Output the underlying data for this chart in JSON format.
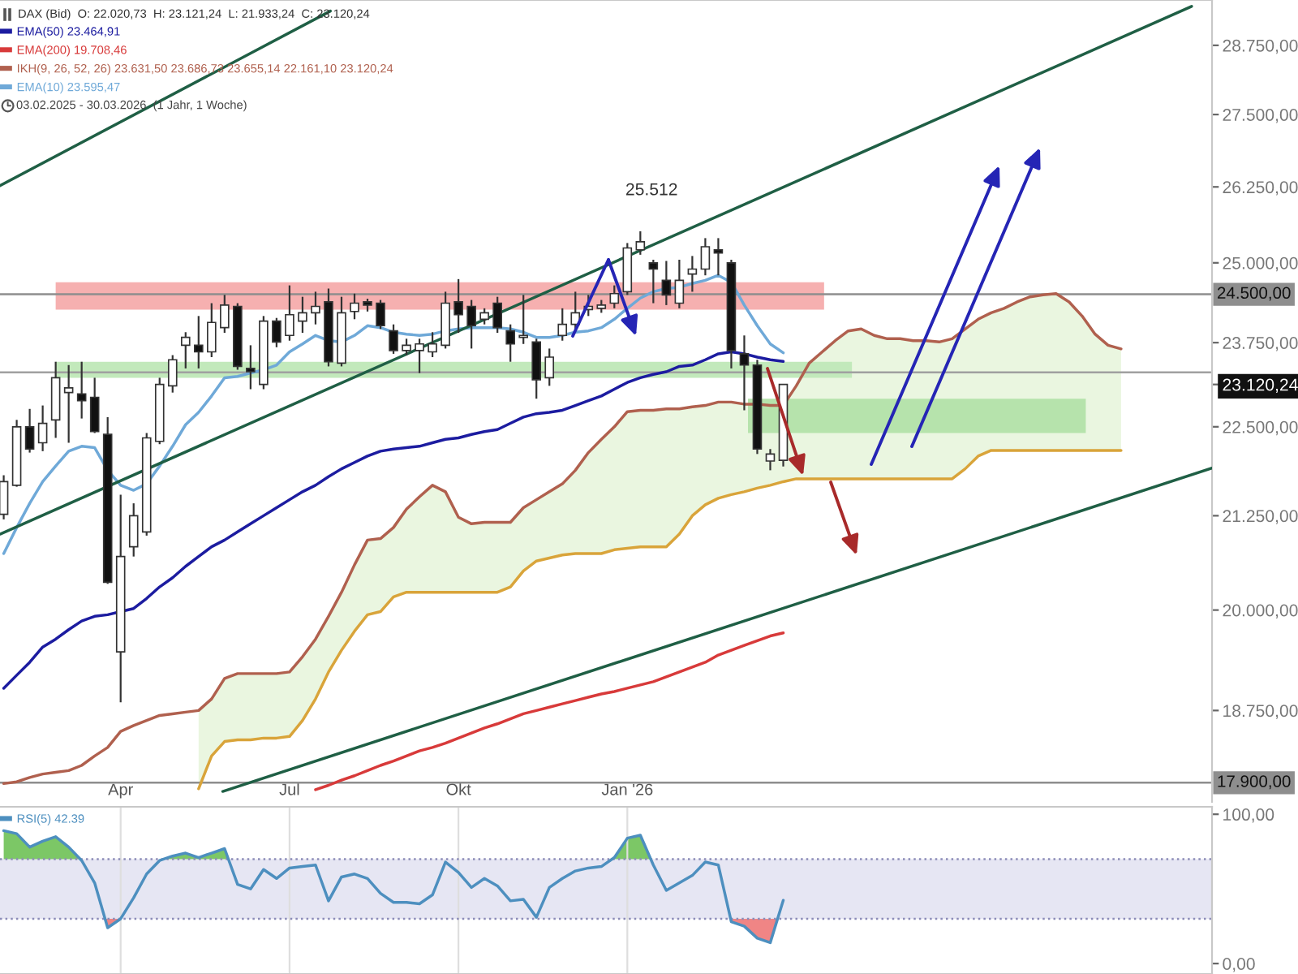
{
  "chart_data": [
    {
      "type": "candlestick",
      "title": "DAX (Bid)  O: 22.020,73  H: 23.121,24  L: 21.933,24  C: 23.120,24",
      "x": [
        "2025-02-03",
        "2025-02-10",
        "2025-02-17",
        "2025-02-24",
        "2025-03-03",
        "2025-03-10",
        "2025-03-17",
        "2025-03-24",
        "2025-03-31",
        "2025-04-07",
        "2025-04-14",
        "2025-04-21",
        "2025-04-28",
        "2025-05-05",
        "2025-05-12",
        "2025-05-19",
        "2025-05-26",
        "2025-06-02",
        "2025-06-09",
        "2025-06-16",
        "2025-06-23",
        "2025-06-30",
        "2025-07-07",
        "2025-07-14",
        "2025-07-21",
        "2025-07-28",
        "2025-08-04",
        "2025-08-11",
        "2025-08-18",
        "2025-08-25",
        "2025-09-01",
        "2025-09-08",
        "2025-09-15",
        "2025-09-22",
        "2025-09-29",
        "2025-10-06",
        "2025-10-13",
        "2025-10-20",
        "2025-10-27",
        "2025-11-03",
        "2025-11-10",
        "2025-11-17",
        "2025-11-24",
        "2025-12-01",
        "2025-12-08",
        "2025-12-15",
        "2025-12-22",
        "2025-12-29",
        "2026-01-05",
        "2026-01-12",
        "2026-01-19",
        "2026-01-26",
        "2026-02-02",
        "2026-02-09",
        "2026-02-16",
        "2026-02-23",
        "2026-03-02",
        "2026-03-09",
        "2026-03-16",
        "2026-03-23",
        "2026-03-30"
      ],
      "ohlc": [
        [
          21270,
          21810,
          21200,
          21720
        ],
        [
          21670,
          22600,
          21650,
          22500
        ],
        [
          22500,
          22760,
          22130,
          22180
        ],
        [
          22270,
          22810,
          22150,
          22550
        ],
        [
          22600,
          23460,
          22340,
          23220
        ],
        [
          23000,
          23410,
          22270,
          23070
        ],
        [
          22980,
          23460,
          22620,
          22880
        ],
        [
          22930,
          23220,
          22410,
          22430
        ],
        [
          22390,
          22640,
          20340,
          20360
        ],
        [
          19470,
          21540,
          18850,
          20700
        ],
        [
          20830,
          21420,
          20700,
          21250
        ],
        [
          21030,
          22410,
          20980,
          22340
        ],
        [
          22290,
          23220,
          22250,
          23120
        ],
        [
          23100,
          23560,
          23000,
          23490
        ],
        [
          23710,
          23910,
          23360,
          23830
        ],
        [
          23710,
          24160,
          23360,
          23610
        ],
        [
          23610,
          24360,
          23530,
          24060
        ],
        [
          23980,
          24490,
          23900,
          24330
        ],
        [
          24310,
          24360,
          23340,
          23390
        ],
        [
          23360,
          23710,
          23050,
          23310
        ],
        [
          23120,
          24160,
          23050,
          24080
        ],
        [
          24080,
          24130,
          23680,
          23760
        ],
        [
          23860,
          24640,
          23780,
          24180
        ],
        [
          24080,
          24460,
          23900,
          24210
        ],
        [
          24210,
          24540,
          24030,
          24310
        ],
        [
          24380,
          24590,
          23390,
          23460
        ],
        [
          23440,
          24460,
          23390,
          24210
        ],
        [
          24230,
          24510,
          24110,
          24360
        ],
        [
          24380,
          24430,
          24230,
          24330
        ],
        [
          24360,
          24410,
          23960,
          24010
        ],
        [
          23930,
          24030,
          23580,
          23630
        ],
        [
          23630,
          23810,
          23560,
          23710
        ],
        [
          23630,
          23810,
          23290,
          23730
        ],
        [
          23610,
          23910,
          23530,
          23730
        ],
        [
          23710,
          24540,
          23660,
          24360
        ],
        [
          24380,
          24740,
          23900,
          24180
        ],
        [
          24310,
          24410,
          23660,
          24010
        ],
        [
          24110,
          24280,
          24030,
          24210
        ],
        [
          24360,
          24460,
          23900,
          23980
        ],
        [
          23930,
          24030,
          23460,
          23730
        ],
        [
          23830,
          24490,
          23730,
          23860
        ],
        [
          23760,
          23810,
          22910,
          23190
        ],
        [
          23220,
          23660,
          23100,
          23530
        ],
        [
          23860,
          24280,
          23780,
          24030
        ],
        [
          24030,
          24540,
          23960,
          24210
        ],
        [
          24260,
          24490,
          24160,
          24310
        ],
        [
          24280,
          24410,
          24210,
          24330
        ],
        [
          24360,
          24640,
          24280,
          24510
        ],
        [
          24540,
          25320,
          24490,
          25240
        ],
        [
          25210,
          25512,
          25130,
          25340
        ],
        [
          25000,
          25050,
          24360,
          24900
        ],
        [
          24720,
          25030,
          24330,
          24490
        ],
        [
          24360,
          25050,
          24280,
          24720
        ],
        [
          24820,
          25110,
          24540,
          24900
        ],
        [
          24900,
          25400,
          24800,
          25260
        ],
        [
          25210,
          25400,
          24800,
          25160
        ],
        [
          25000,
          25050,
          23360,
          23630
        ],
        [
          23580,
          23860,
          22740,
          23410
        ],
        [
          23410,
          23490,
          22110,
          22180
        ],
        [
          22010,
          22180,
          21880,
          22110
        ],
        [
          22020.73,
          23121.24,
          21933.24,
          23120.24
        ]
      ],
      "series": [
        {
          "type": "line",
          "name": "EMA(50) 23.464,91",
          "color": "#1c1ca0",
          "values": [
            19020,
            19180,
            19340,
            19530,
            19630,
            19750,
            19860,
            19920,
            19940,
            19980,
            20020,
            20150,
            20300,
            20420,
            20570,
            20700,
            20830,
            20920,
            21030,
            21140,
            21250,
            21360,
            21470,
            21580,
            21670,
            21790,
            21900,
            21990,
            22080,
            22150,
            22180,
            22200,
            22220,
            22270,
            22320,
            22340,
            22390,
            22430,
            22460,
            22550,
            22640,
            22690,
            22710,
            22740,
            22810,
            22880,
            22950,
            23050,
            23150,
            23220,
            23270,
            23310,
            23390,
            23410,
            23490,
            23580,
            23610,
            23580,
            23530,
            23490,
            23464.91
          ]
        },
        {
          "type": "line",
          "name": "EMA(200) 19.708,46",
          "color": "#d83a3a",
          "values": [
            null,
            null,
            null,
            null,
            null,
            null,
            null,
            null,
            null,
            null,
            null,
            null,
            null,
            null,
            null,
            null,
            null,
            null,
            null,
            null,
            null,
            null,
            null,
            null,
            17820,
            17870,
            17930,
            17980,
            18040,
            18100,
            18150,
            18210,
            18270,
            18310,
            18360,
            18420,
            18480,
            18540,
            18590,
            18650,
            18710,
            18750,
            18790,
            18830,
            18870,
            18910,
            18950,
            18980,
            19020,
            19060,
            19100,
            19160,
            19220,
            19280,
            19340,
            19430,
            19490,
            19550,
            19610,
            19670,
            19708.46
          ]
        },
        {
          "type": "line",
          "name": "IKH(9, 26, 52, 26) 23.631,50 23.686,73 23.655,14 22.161,10 23.120,24",
          "color": "#b0604e",
          "x": [
            "2025-02-03",
            "2025-02-10",
            "2025-02-17",
            "2025-02-24",
            "2025-03-03",
            "2025-03-10",
            "2025-03-17",
            "2025-03-24",
            "2025-03-31",
            "2025-04-07",
            "2025-04-14",
            "2025-04-21",
            "2025-04-28",
            "2025-05-05",
            "2025-05-12",
            "2025-05-19",
            "2025-05-26",
            "2025-06-02",
            "2025-06-09",
            "2025-06-16",
            "2025-06-23",
            "2025-06-30",
            "2025-07-07",
            "2025-07-14",
            "2025-07-21",
            "2025-07-28",
            "2025-08-04",
            "2025-08-11",
            "2025-08-18",
            "2025-08-25",
            "2025-09-01",
            "2025-09-08",
            "2025-09-15",
            "2025-09-22",
            "2025-09-29",
            "2025-10-06",
            "2025-10-13",
            "2025-10-20",
            "2025-10-27",
            "2025-11-03",
            "2025-11-10",
            "2025-11-17",
            "2025-11-24",
            "2025-12-01",
            "2025-12-08",
            "2025-12-15",
            "2025-12-22",
            "2025-12-29",
            "2026-01-05",
            "2026-01-12",
            "2026-01-19",
            "2026-01-26",
            "2026-02-02",
            "2026-02-09",
            "2026-02-16",
            "2026-02-23",
            "2026-03-02",
            "2026-03-09",
            "2026-03-16",
            "2026-03-23",
            "2026-03-30",
            "2026-04-06",
            "2026-04-13",
            "2026-04-20",
            "2026-04-27",
            "2026-05-04",
            "2026-05-11",
            "2026-05-18",
            "2026-05-25",
            "2026-06-01",
            "2026-06-08",
            "2026-06-15",
            "2026-06-22",
            "2026-06-29",
            "2026-07-06",
            "2026-07-13",
            "2026-07-20",
            "2026-07-27",
            "2026-08-03",
            "2026-08-10",
            "2026-08-17",
            "2026-08-24",
            "2026-08-31",
            "2026-09-07",
            "2026-09-14",
            "2026-09-21",
            "2026-09-28"
          ],
          "values": [
            17890,
            17910,
            17960,
            18000,
            18020,
            18040,
            18100,
            18210,
            18310,
            18500,
            18570,
            18630,
            18690,
            18710,
            18730,
            18750,
            18890,
            19140,
            19200,
            19200,
            19200,
            19200,
            19220,
            19410,
            19630,
            19920,
            20230,
            20590,
            20920,
            20940,
            21090,
            21340,
            21510,
            21670,
            21580,
            21230,
            21140,
            21160,
            21160,
            21160,
            21360,
            21470,
            21580,
            21690,
            21880,
            22130,
            22320,
            22500,
            22720,
            22740,
            22740,
            22760,
            22760,
            22790,
            22810,
            22860,
            22860,
            22830,
            22830,
            22810,
            22810,
            23100,
            23440,
            23610,
            23780,
            23930,
            23960,
            23860,
            23810,
            23810,
            23780,
            23780,
            23760,
            23810,
            23960,
            24110,
            24210,
            24280,
            24380,
            24460,
            24490,
            24510,
            24380,
            24160,
            23880,
            23710,
            23655.14
          ]
        },
        {
          "type": "line",
          "name": "EMA(10) 23.595,47",
          "color": "#6fa9d8",
          "values": [
            20740,
            21090,
            21420,
            21720,
            21940,
            22150,
            22220,
            22200,
            21880,
            21670,
            21600,
            21690,
            21940,
            22220,
            22530,
            22710,
            22950,
            23220,
            23240,
            23290,
            23340,
            23410,
            23610,
            23730,
            23860,
            23780,
            23760,
            23860,
            24010,
            23980,
            23910,
            23880,
            23860,
            23880,
            23930,
            23960,
            23980,
            23980,
            23980,
            23960,
            23910,
            23830,
            23830,
            23860,
            23910,
            23930,
            23980,
            24110,
            24280,
            24440,
            24540,
            24590,
            24610,
            24670,
            24720,
            24800,
            24690,
            24330,
            24010,
            23730,
            23595.47
          ]
        },
        {
          "type": "line",
          "color": "#d9a43a",
          "x": [
            "2025-05-19",
            "2025-05-26",
            "2025-06-02",
            "2025-06-09",
            "2025-06-16",
            "2025-06-23",
            "2025-06-30",
            "2025-07-07",
            "2025-07-14",
            "2025-07-21",
            "2025-07-28",
            "2025-08-04",
            "2025-08-11",
            "2025-08-18",
            "2025-08-25",
            "2025-09-01",
            "2025-09-08",
            "2025-09-15",
            "2025-09-22",
            "2025-09-29",
            "2025-10-06",
            "2025-10-13",
            "2025-10-20",
            "2025-10-27",
            "2025-11-03",
            "2025-11-10",
            "2025-11-17",
            "2025-11-24",
            "2025-12-01",
            "2025-12-08",
            "2025-12-15",
            "2025-12-22",
            "2025-12-29",
            "2026-01-05",
            "2026-01-12",
            "2026-01-19",
            "2026-01-26",
            "2026-02-02",
            "2026-02-09",
            "2026-02-16",
            "2026-02-23",
            "2026-03-02",
            "2026-03-09",
            "2026-03-16",
            "2026-03-23",
            "2026-03-30",
            "2026-04-06",
            "2026-04-13",
            "2026-04-20",
            "2026-04-27",
            "2026-05-04",
            "2026-05-11",
            "2026-05-18",
            "2026-05-25",
            "2026-06-01",
            "2026-06-08",
            "2026-06-15",
            "2026-06-22",
            "2026-06-29",
            "2026-07-06",
            "2026-07-13",
            "2026-07-20",
            "2026-07-27",
            "2026-08-03",
            "2026-08-10",
            "2026-08-17",
            "2026-08-24",
            "2026-08-31",
            "2026-09-07",
            "2026-09-14",
            "2026-09-21",
            "2026-09-28"
          ],
          "values": [
            17830,
            18210,
            18380,
            18400,
            18400,
            18420,
            18420,
            18440,
            18630,
            18890,
            19220,
            19490,
            19730,
            19940,
            19980,
            20170,
            20230,
            20230,
            20230,
            20230,
            20230,
            20230,
            20230,
            20230,
            20300,
            20510,
            20640,
            20680,
            20720,
            20740,
            20740,
            20740,
            20790,
            20810,
            20830,
            20830,
            20830,
            21000,
            21250,
            21400,
            21490,
            21540,
            21580,
            21630,
            21670,
            21720,
            21760,
            21760,
            21760,
            21760,
            21760,
            21760,
            21760,
            21760,
            21760,
            21760,
            21760,
            21760,
            21760,
            21900,
            22080,
            22161.1,
            22161.1,
            22161.1,
            22161.1,
            22161.1,
            22161.1,
            22161.1,
            22161.1,
            22161.1,
            22161.1,
            22161.1
          ]
        },
        {
          "type": "line",
          "color": "#eaf6e0",
          "x": [
            "2025-05-19",
            "2025-05-26",
            "2025-06-02",
            "2025-06-09",
            "2025-06-16",
            "2025-06-23",
            "2025-06-30",
            "2025-07-07",
            "2025-07-14",
            "2025-07-21",
            "2025-07-28",
            "2025-08-04",
            "2025-08-11",
            "2025-08-18",
            "2025-08-25",
            "2025-09-01",
            "2025-09-08",
            "2025-09-15",
            "2025-09-22",
            "2025-09-29",
            "2025-10-06",
            "2025-10-13",
            "2025-10-20",
            "2025-10-27",
            "2025-11-03",
            "2025-11-10",
            "2025-11-17",
            "2025-11-24",
            "2025-12-01",
            "2025-12-08",
            "2025-12-15",
            "2025-12-22",
            "2025-12-29",
            "2026-01-05",
            "2026-01-12",
            "2026-01-19",
            "2026-01-26",
            "2026-02-02",
            "2026-02-09",
            "2026-02-16",
            "2026-02-23",
            "2026-03-02",
            "2026-03-09",
            "2026-03-16",
            "2026-03-23",
            "2026-03-30",
            "2026-04-06",
            "2026-04-13",
            "2026-04-20",
            "2026-04-27",
            "2026-05-04",
            "2026-05-11",
            "2026-05-18",
            "2026-05-25",
            "2026-06-01",
            "2026-06-08",
            "2026-06-15",
            "2026-06-22",
            "2026-06-29",
            "2026-07-06",
            "2026-07-13",
            "2026-07-20",
            "2026-07-27",
            "2026-08-03",
            "2026-08-10",
            "2026-08-17",
            "2026-08-24",
            "2026-08-31",
            "2026-09-07",
            "2026-09-14",
            "2026-09-21",
            "2026-09-28"
          ],
          "values": [
            null,
            null,
            null,
            null,
            null,
            null,
            null,
            null,
            null,
            null,
            null,
            null,
            null,
            null,
            null,
            null,
            null,
            null,
            null,
            null,
            null,
            null,
            null,
            null,
            null,
            null,
            null,
            null,
            null,
            null,
            null,
            null,
            null,
            null,
            null,
            null,
            null,
            null,
            null,
            null,
            null,
            null,
            null,
            null,
            null,
            null,
            null,
            null,
            null,
            null,
            null,
            null,
            null,
            null,
            null,
            null,
            null,
            null,
            null,
            null,
            null,
            null,
            null,
            null,
            null,
            null,
            null,
            null,
            null,
            null,
            null,
            null
          ],
          "lower": [
            17830,
            18210,
            18380,
            18400,
            18400,
            18420,
            18420,
            18440,
            18630,
            18890,
            19220,
            19490,
            19730,
            19940,
            19980,
            20170,
            20230,
            20230,
            20230,
            20230,
            20230,
            20230,
            20230,
            20230,
            20300,
            20510,
            20640,
            20680,
            20720,
            20740,
            20740,
            20740,
            20790,
            20810,
            20830,
            20830,
            20830,
            21000,
            21250,
            21400,
            21490,
            21540,
            21580,
            21630,
            21670,
            21720,
            21760,
            21760,
            21760,
            21760,
            21760,
            21760,
            21760,
            21760,
            21760,
            21760,
            21760,
            21760,
            21760,
            21900,
            22080,
            22161.1,
            22161.1,
            22161.1,
            22161.1,
            22161.1,
            22161.1,
            22161.1,
            22161.1,
            22161.1,
            22161.1,
            22161.1
          ],
          "upper": [
            18750,
            18890,
            19140,
            19200,
            19200,
            19200,
            19200,
            19220,
            19410,
            19630,
            19920,
            20230,
            20590,
            20920,
            20940,
            21090,
            21340,
            21510,
            21670,
            21580,
            21230,
            21140,
            21160,
            21160,
            21160,
            21360,
            21470,
            21580,
            21690,
            21880,
            22130,
            22320,
            22500,
            22720,
            22740,
            22740,
            22760,
            22760,
            22790,
            22810,
            22860,
            22860,
            22830,
            22830,
            22810,
            22810,
            23100,
            23440,
            23610,
            23780,
            23930,
            23960,
            23860,
            23810,
            23810,
            23780,
            23780,
            23760,
            23810,
            23960,
            24110,
            24210,
            24280,
            24380,
            24460,
            24490,
            24510,
            24380,
            24160,
            23880,
            23710,
            23655.14
          ]
        },
        {
          "type": "line",
          "color": "#f6b0b0",
          "x": [
            "2025-03-03",
            "2026-04-21"
          ],
          "values": [
            null,
            null
          ],
          "lower": [
            24260,
            24260
          ],
          "upper": [
            24690,
            24690
          ]
        },
        {
          "type": "line",
          "color": "#c2e9bb",
          "x": [
            "2025-03-03",
            "2026-05-06"
          ],
          "values": [
            null,
            null
          ],
          "lower": [
            23220,
            23220
          ],
          "upper": [
            23460,
            23460
          ]
        },
        {
          "type": "line",
          "color": "#b6e3ac",
          "x": [
            "2026-03-11",
            "2026-09-09"
          ],
          "values": [
            null,
            null
          ],
          "lower": [
            22410,
            22410
          ],
          "upper": [
            22910,
            22910
          ]
        },
        {
          "type": "line",
          "color": "#1f5f45",
          "x": [
            "2025-02-01",
            "2026-11-05"
          ],
          "values": [
            21000,
            29480
          ]
        },
        {
          "type": "line",
          "color": "#1f5f45",
          "x": [
            "2025-02-01",
            "2025-07-29"
          ],
          "values": [
            26270,
            29390
          ]
        },
        {
          "type": "line",
          "color": "#1f5f45",
          "x": [
            "2025-06-01",
            "2026-11-16"
          ],
          "values": [
            17800,
            21910
          ]
        }
      ],
      "xlim": [
        "2025-02-01",
        "2026-11-16"
      ],
      "xticks": [
        {
          "value": "2025-04-07",
          "label": "Apr"
        },
        {
          "value": "2025-07-07",
          "label": "Jul"
        },
        {
          "value": "2025-10-06",
          "label": "Okt"
        },
        {
          "value": "2026-01-05",
          "label": "Jan '26"
        }
      ],
      "log": true,
      "ylim": [
        17680,
        29600
      ],
      "yticks": [
        {
          "value": 18750,
          "label": "18.750,00"
        },
        {
          "value": 20000,
          "label": "20.000,00"
        },
        {
          "value": 21250,
          "label": "21.250,00"
        },
        {
          "value": 22500,
          "label": "22.500,00"
        },
        {
          "value": 23120.24,
          "label": "23.120,24"
        },
        {
          "value": 23750,
          "label": "23.750,00"
        },
        {
          "value": 25000,
          "label": "25.000,00"
        },
        {
          "value": 26250,
          "label": "26.250,00"
        },
        {
          "value": 27500,
          "label": "27.500,00"
        },
        {
          "value": 28750,
          "label": "28.750,00"
        }
      ],
      "ref_lines": [
        {
          "axis": "y",
          "value": 24500,
          "label": "24.500,00",
          "color": "#8e8e8e"
        },
        {
          "axis": "y",
          "value": 23300,
          "label": null,
          "color": "#a0a0a0"
        },
        {
          "axis": "y",
          "value": 17900,
          "label": "17.900,00",
          "color": "#8e8e8e"
        }
      ],
      "annotations": [
        "03.02.2025 - 30.03.2026  (1 Jahr, 1 Woche)",
        {
          "text": "25.512",
          "x": "2026-01-12",
          "y": 25512
        }
      ],
      "legend": "top left"
    },
    {
      "type": "line",
      "x": [
        "2025-02-03",
        "2025-02-10",
        "2025-02-17",
        "2025-02-24",
        "2025-03-03",
        "2025-03-10",
        "2025-03-17",
        "2025-03-24",
        "2025-03-31",
        "2025-04-07",
        "2025-04-14",
        "2025-04-21",
        "2025-04-28",
        "2025-05-05",
        "2025-05-12",
        "2025-05-19",
        "2025-05-26",
        "2025-06-02",
        "2025-06-09",
        "2025-06-16",
        "2025-06-23",
        "2025-06-30",
        "2025-07-07",
        "2025-07-14",
        "2025-07-21",
        "2025-07-28",
        "2025-08-04",
        "2025-08-11",
        "2025-08-18",
        "2025-08-25",
        "2025-09-01",
        "2025-09-08",
        "2025-09-15",
        "2025-09-22",
        "2025-09-29",
        "2025-10-06",
        "2025-10-13",
        "2025-10-20",
        "2025-10-27",
        "2025-11-03",
        "2025-11-10",
        "2025-11-17",
        "2025-11-24",
        "2025-12-01",
        "2025-12-08",
        "2025-12-15",
        "2025-12-22",
        "2025-12-29",
        "2026-01-05",
        "2026-01-12",
        "2026-01-19",
        "2026-01-26",
        "2026-02-02",
        "2026-02-09",
        "2026-02-16",
        "2026-02-23",
        "2026-03-02",
        "2026-03-09",
        "2026-03-16",
        "2026-03-23",
        "2026-03-30"
      ],
      "series": [
        {
          "name": "RSI(5) 42.39",
          "color": "#4d8fbf",
          "values": [
            89,
            87,
            78,
            82,
            85,
            78,
            69,
            54,
            24,
            30,
            44,
            60,
            69,
            72,
            74,
            71,
            74,
            77,
            53,
            50,
            63,
            57,
            64,
            65,
            66,
            42,
            58,
            60,
            57,
            47,
            41,
            41,
            40,
            46,
            68,
            61,
            51,
            57,
            52,
            42,
            43,
            31,
            51,
            57,
            62,
            64,
            65,
            71,
            84,
            86,
            66,
            49,
            54,
            59,
            68,
            66,
            28,
            25,
            17,
            14,
            42.39
          ]
        },
        {
          "type": "line",
          "color": "#7cc766",
          "x": [
            "2025-02-03",
            "2025-02-10",
            "2025-02-17",
            "2025-02-24",
            "2025-03-03",
            "2025-03-10",
            "2025-03-16"
          ],
          "values": [
            null,
            null,
            null,
            null,
            null,
            null,
            null
          ],
          "lower": [
            70,
            70,
            70,
            70,
            70,
            70,
            70
          ],
          "upper": [
            89,
            87,
            78,
            82,
            85,
            78,
            70
          ]
        },
        {
          "type": "line",
          "color": "#7cc766",
          "x": [
            "2025-04-30",
            "2025-05-05",
            "2025-05-12",
            "2025-05-19",
            "2025-05-26",
            "2025-06-02",
            "2025-06-04"
          ],
          "values": [
            null,
            null,
            null,
            null,
            null,
            null,
            null
          ],
          "lower": [
            70,
            70,
            70,
            70,
            70,
            70,
            70
          ],
          "upper": [
            70,
            72,
            74,
            71,
            74,
            77,
            70
          ]
        },
        {
          "type": "line",
          "color": "#7cc766",
          "x": [
            "2025-12-28",
            "2025-12-29",
            "2026-01-05",
            "2026-01-12",
            "2026-01-18"
          ],
          "values": [
            null,
            null,
            null,
            null,
            null
          ],
          "lower": [
            70,
            70,
            70,
            70,
            70
          ],
          "upper": [
            70,
            71,
            84,
            86,
            70
          ]
        },
        {
          "type": "line",
          "color": "#f08585",
          "x": [
            "2025-03-30",
            "2025-03-31",
            "2025-04-07"
          ],
          "values": [
            null,
            null,
            null
          ],
          "lower": [
            30,
            24,
            30
          ],
          "upper": [
            30,
            30,
            30
          ]
        },
        {
          "type": "line",
          "color": "#f08585",
          "x": [
            "2026-03-01",
            "2026-03-02",
            "2026-03-09",
            "2026-03-16",
            "2026-03-23",
            "2026-03-27"
          ],
          "values": [
            null,
            null,
            null,
            null,
            null,
            null
          ],
          "lower": [
            30,
            28,
            25,
            17,
            14,
            30
          ],
          "upper": [
            30,
            30,
            30,
            30,
            30,
            30
          ]
        }
      ],
      "xlim": [
        "2025-02-01",
        "2026-11-16"
      ],
      "xticks": [
        {
          "value": "2025-04-07",
          "label": null
        },
        {
          "value": "2025-07-07",
          "label": null
        },
        {
          "value": "2025-10-06",
          "label": null
        },
        {
          "value": "2026-01-05",
          "label": null
        }
      ],
      "ylim": [
        -7,
        105
      ],
      "yticks": [
        {
          "value": 0,
          "label": "0,00"
        },
        {
          "value": 100,
          "label": "100,00"
        }
      ],
      "tick_labels": "y",
      "grid": "x",
      "bands": [
        {
          "axis": "y",
          "from": 30,
          "to": 70,
          "color": "#e6e6f3"
        }
      ],
      "ref_lines": [
        {
          "axis": "y",
          "value": 70,
          "label": null,
          "color": "#8c8cb8",
          "line_style": "dotted"
        },
        {
          "axis": "y",
          "value": 30,
          "label": null,
          "color": "#8c8cb8",
          "line_style": "dotted"
        }
      ],
      "legend": "top left"
    }
  ]
}
